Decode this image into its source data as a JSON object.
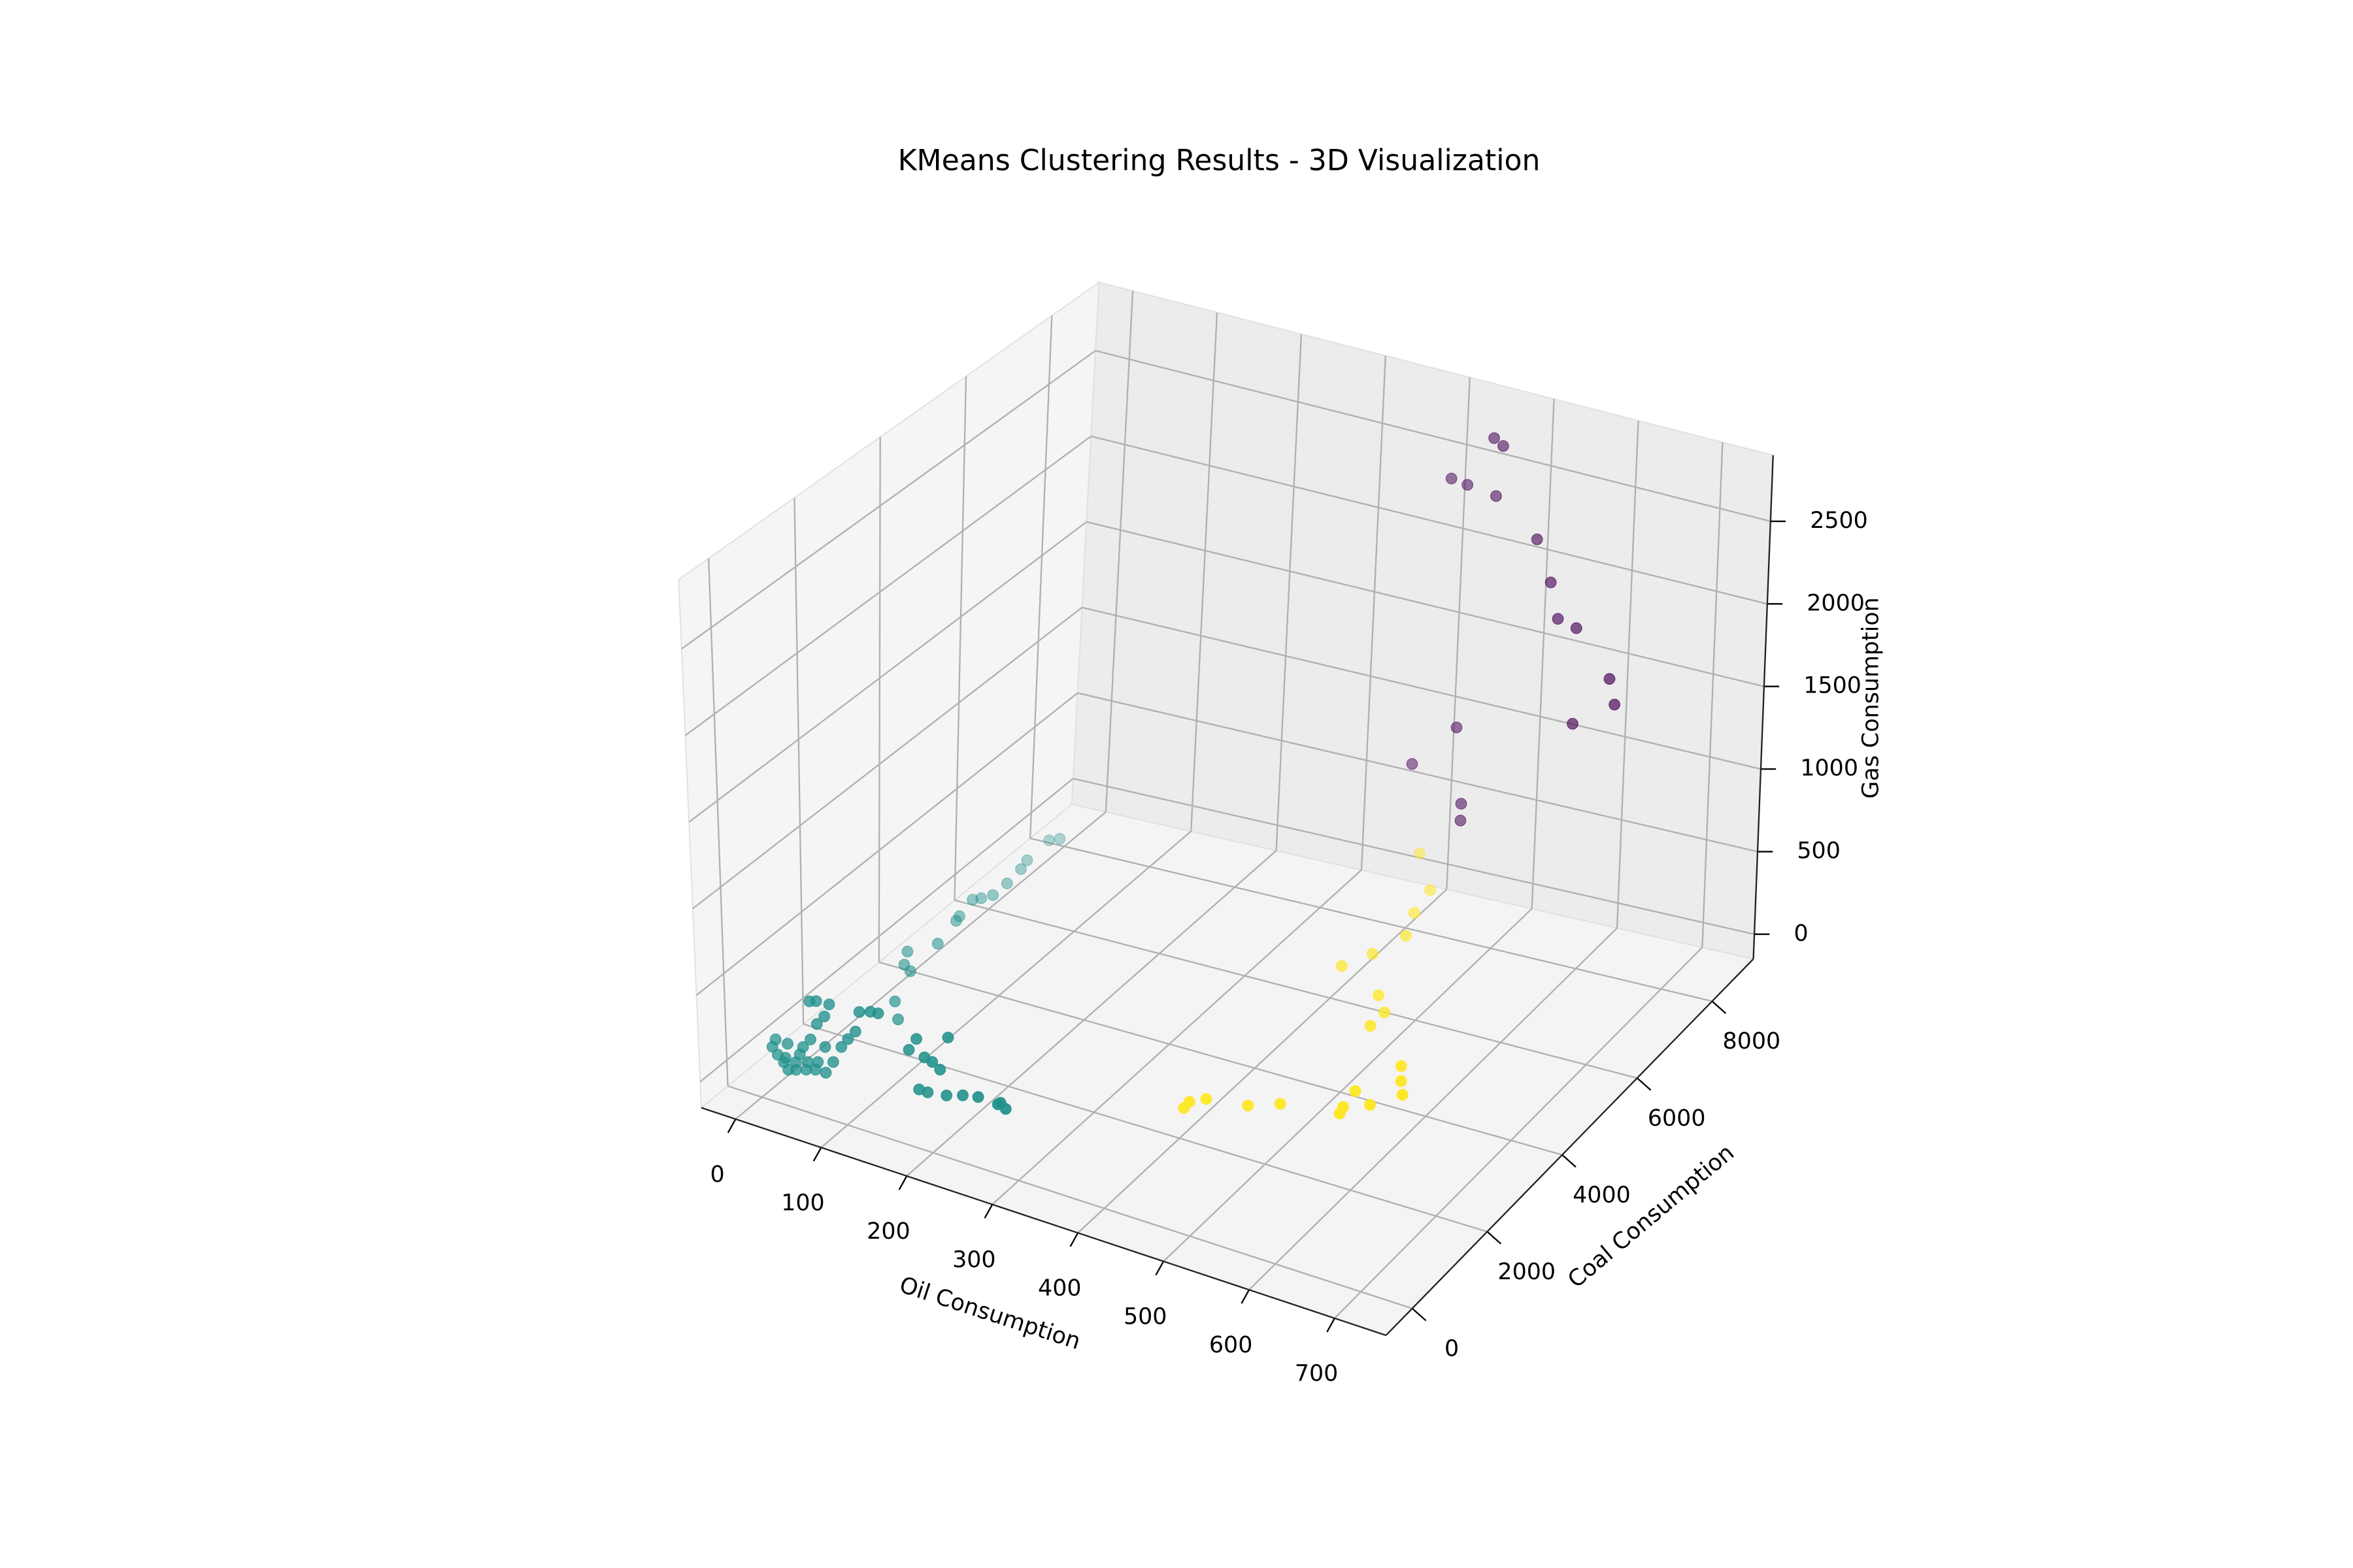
{
  "chart_data": {
    "type": "scatter3d",
    "title": "KMeans Clustering Results - 3D Visualization",
    "xlabel": "Oil Consumption",
    "ylabel": "Coal Consumption",
    "zlabel": "Gas Consumption",
    "xlim": [
      -40,
      760
    ],
    "ylim": [
      -700,
      9100
    ],
    "zlim": [
      -150,
      2900
    ],
    "xticks": [
      0,
      100,
      200,
      300,
      400,
      500,
      600,
      700
    ],
    "yticks": [
      0,
      2000,
      4000,
      6000,
      8000
    ],
    "zticks": [
      0,
      500,
      1000,
      1500,
      2000,
      2500
    ],
    "grid": true,
    "series": [
      {
        "color": "#440154",
        "x": [
          459,
          470,
          411,
          430,
          464,
          514,
          532,
          542,
          564,
          605,
          612,
          564,
          429,
          379,
          438,
          438
        ],
        "y": [
          8500,
          8500,
          8500,
          8500,
          8500,
          8500,
          8500,
          8500,
          8500,
          8500,
          8500,
          8500,
          8500,
          8500,
          8500,
          8500
        ],
        "z": [
          2734,
          2701,
          2431,
          2418,
          2395,
          2201,
          1967,
          1762,
          1734,
          1482,
          1337,
          1162,
          973,
          695,
          530,
          430
        ]
      },
      {
        "color": "#21918c",
        "x": [
          5,
          11,
          18,
          23,
          32,
          41,
          50,
          58,
          67,
          50,
          58,
          73,
          37,
          46,
          55,
          67,
          76,
          86,
          94,
          103,
          108,
          121,
          130,
          67,
          23,
          9,
          32,
          20,
          44,
          58,
          165,
          174,
          183,
          192,
          201,
          211,
          176,
          186,
          208,
          227,
          245,
          268,
          277,
          271,
          69,
          90,
          39,
          28,
          51,
          46,
          38,
          36,
          30,
          36,
          43,
          43,
          40,
          36,
          34,
          42
        ],
        "y": [
          200,
          200,
          200,
          200,
          200,
          200,
          200,
          200,
          200,
          200,
          200,
          200,
          200,
          200,
          200,
          200,
          200,
          200,
          200,
          200,
          200,
          200,
          200,
          200,
          200,
          200,
          200,
          200,
          200,
          200,
          200,
          200,
          200,
          200,
          200,
          200,
          200,
          200,
          200,
          200,
          200,
          200,
          200,
          200,
          1975,
          1585,
          2890,
          3220,
          2780,
          3610,
          4270,
          4400,
          4880,
          4970,
          5120,
          5490,
          5920,
          6170,
          6790,
          6890
        ],
        "z": [
          113,
          77,
          44,
          9,
          67,
          169,
          227,
          329,
          387,
          447,
          461,
          466,
          120,
          90,
          60,
          62,
          138,
          241,
          299,
          357,
          478,
          500,
          505,
          211,
          159,
          162,
          23,
          73,
          43,
          109,
          350,
          427,
          335,
          323,
          293,
          494,
          139,
          138,
          155,
          186,
          205,
          199,
          187,
          213,
          150,
          150,
          150,
          150,
          150,
          150,
          150,
          150,
          150,
          150,
          150,
          150,
          150,
          150,
          150,
          150
        ]
      },
      {
        "color": "#fde725",
        "x": [
          416,
          415,
          427,
          470,
          497,
          559,
          556,
          552,
          578,
          598,
          584,
          570,
          504,
          504,
          482,
          420,
          436,
          449,
          434,
          426,
          379
        ],
        "y": [
          1750,
          1920,
          2090,
          2220,
          2460,
          2630,
          2790,
          3200,
          3000,
          3410,
          3690,
          4010,
          4690,
          5060,
          5400,
          5830,
          6280,
          6870,
          7430,
          8030,
          8810
        ],
        "z": [
          100,
          100,
          100,
          100,
          100,
          100,
          100,
          100,
          100,
          100,
          100,
          100,
          100,
          100,
          100,
          100,
          100,
          100,
          100,
          100,
          100
        ]
      }
    ]
  }
}
